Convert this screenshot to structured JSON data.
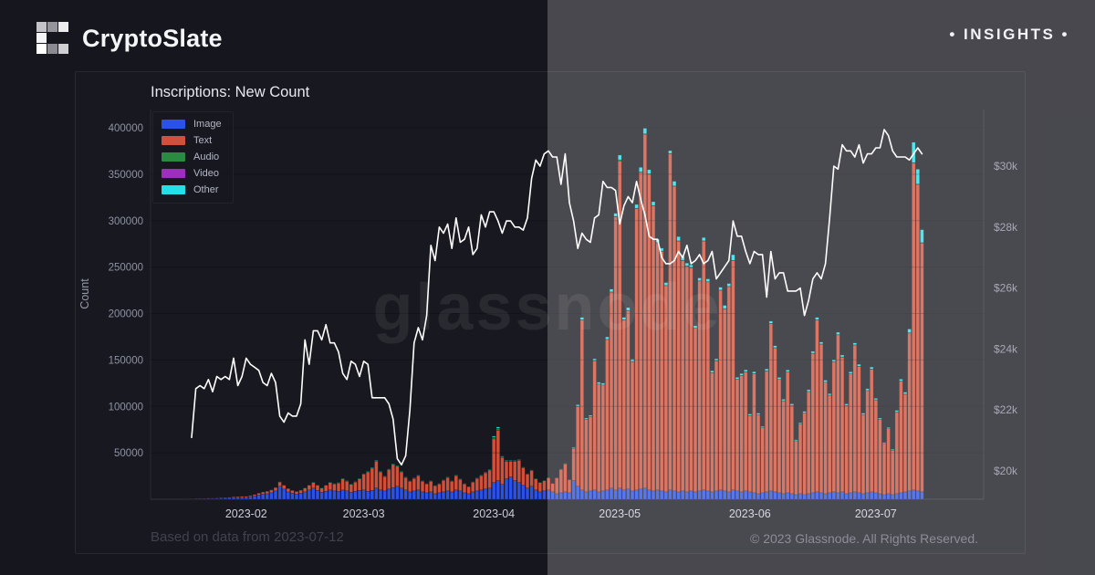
{
  "header": {
    "brand": "CryptoSlate",
    "insights_label": "• INSIGHTS •"
  },
  "chart": {
    "title": "Inscriptions: New Count",
    "ylabel_left": "Count"
  },
  "watermark": "glassnode",
  "footer": {
    "left": "Based on data from 2023-07-12",
    "right": "© 2023 Glassnode. All Rights Reserved."
  },
  "colors": {
    "background": "#16161e",
    "price_line": "#ffffff",
    "image": "#2b52e8",
    "text": "#d1503a",
    "audio": "#2a8a42",
    "video": "#9b30bd",
    "other": "#22dfe8",
    "tick_label": "#8e93a2",
    "month_label": "#ccced8"
  },
  "chart_data": {
    "type": "bar",
    "subtype": "stacked-daily-bars-with-price-line",
    "title": "Inscriptions: New Count",
    "start_date": "2023-01-19",
    "end_date": "2023-07-12",
    "units": "thousands of inscriptions per day",
    "ylabel": "Count",
    "ylim_left": [
      0,
      400000
    ],
    "ylim_right_usd": [
      20000,
      30000
    ],
    "grid": "horizontal",
    "legend_position": "top-left",
    "legend": [
      {
        "label": "Image",
        "color": "#2b52e8"
      },
      {
        "label": "Text",
        "color": "#d1503a"
      },
      {
        "label": "Audio",
        "color": "#2a8a42"
      },
      {
        "label": "Video",
        "color": "#9b30bd"
      },
      {
        "label": "Other",
        "color": "#22dfe8"
      }
    ],
    "left_axis_ticks": [
      400000,
      350000,
      300000,
      250000,
      200000,
      150000,
      100000,
      50000
    ],
    "right_axis_tick_labels": [
      "$30k",
      "$28k",
      "$26k",
      "$24k",
      "$22k",
      "$20k"
    ],
    "right_axis_tick_values_k": [
      30,
      28,
      26,
      24,
      22,
      20
    ],
    "x_tick_labels": [
      "2023-02",
      "2023-03",
      "2023-04",
      "2023-05",
      "2023-06",
      "2023-07"
    ],
    "x_tick_day_index": [
      13,
      41,
      72,
      102,
      133,
      163
    ],
    "series_keys": [
      "Image",
      "Text",
      "Audio",
      "Video",
      "Other"
    ],
    "bars_k": [
      [
        0.4,
        0.3,
        0,
        0,
        0
      ],
      [
        0.5,
        0.4,
        0,
        0,
        0
      ],
      [
        0.6,
        0.4,
        0,
        0,
        0
      ],
      [
        0.5,
        0.5,
        0,
        0,
        0
      ],
      [
        0.6,
        0.6,
        0,
        0,
        0
      ],
      [
        0.7,
        0.5,
        0,
        0,
        0
      ],
      [
        0.8,
        0.6,
        0,
        0,
        0.1
      ],
      [
        0.9,
        0.7,
        0,
        0,
        0.1
      ],
      [
        1,
        0.8,
        0,
        0,
        0.1
      ],
      [
        1.2,
        0.9,
        0,
        0,
        0.1
      ],
      [
        1.4,
        1.2,
        0,
        0,
        0.1
      ],
      [
        1.5,
        1.3,
        0,
        0,
        0.1
      ],
      [
        1.6,
        1.4,
        0,
        0,
        0.1
      ],
      [
        2,
        1.2,
        0,
        0,
        0.1
      ],
      [
        2.5,
        1.4,
        0,
        0,
        0.1
      ],
      [
        3.5,
        1.6,
        0,
        0,
        0.1
      ],
      [
        4.5,
        2,
        0,
        0,
        0.2
      ],
      [
        5.5,
        2.2,
        0,
        0,
        0.2
      ],
      [
        6,
        2.5,
        0,
        0,
        0.2
      ],
      [
        7,
        3,
        0,
        0,
        0.2
      ],
      [
        9,
        3.5,
        0,
        0,
        0.3
      ],
      [
        14,
        4.5,
        0,
        0,
        0.3
      ],
      [
        11,
        4,
        0,
        0,
        0.3
      ],
      [
        8,
        3.5,
        0,
        0,
        0.2
      ],
      [
        6.5,
        3,
        0,
        0,
        0.2
      ],
      [
        5.5,
        2.8,
        0,
        0,
        0.2
      ],
      [
        6.5,
        3.2,
        0,
        0,
        0.2
      ],
      [
        8,
        4,
        0,
        0,
        0.3
      ],
      [
        10,
        5,
        0,
        0,
        0.3
      ],
      [
        12,
        6,
        0.1,
        0,
        0.4
      ],
      [
        9.5,
        5.5,
        0,
        0,
        0.3
      ],
      [
        7.5,
        4.5,
        0,
        0,
        0.3
      ],
      [
        8.5,
        6.5,
        0.1,
        0,
        0.3
      ],
      [
        10,
        8,
        0.1,
        0,
        0.4
      ],
      [
        9,
        7.5,
        0.1,
        0,
        0.4
      ],
      [
        8.5,
        9,
        0.1,
        0,
        0.4
      ],
      [
        10,
        12,
        0.1,
        0,
        0.5
      ],
      [
        9,
        10.5,
        0.1,
        0,
        0.4
      ],
      [
        7.5,
        8.5,
        0.1,
        0,
        0.4
      ],
      [
        8.5,
        10,
        0.1,
        0,
        0.4
      ],
      [
        9.5,
        12.5,
        0.1,
        0,
        0.5
      ],
      [
        10,
        17,
        0.1,
        0,
        0.5
      ],
      [
        8.5,
        21,
        0.1,
        0,
        0.5
      ],
      [
        9.5,
        24,
        0.1,
        0,
        0.6
      ],
      [
        12,
        29,
        0.1,
        0,
        0.7
      ],
      [
        10,
        19.5,
        0.1,
        0,
        0.5
      ],
      [
        9,
        15.5,
        0.1,
        0,
        0.4
      ],
      [
        11,
        21,
        0.1,
        0,
        0.5
      ],
      [
        12.5,
        25,
        0.1,
        0,
        0.6
      ],
      [
        14,
        21.5,
        0.1,
        0,
        0.6
      ],
      [
        12,
        17.5,
        0.1,
        0,
        0.5
      ],
      [
        10,
        13.5,
        0.1,
        0,
        0.4
      ],
      [
        8,
        11.5,
        0.1,
        0,
        0.3
      ],
      [
        9,
        13.5,
        0.1,
        0,
        0.4
      ],
      [
        10,
        15.5,
        0.1,
        0,
        0.4
      ],
      [
        8,
        11.5,
        0.1,
        0,
        0.3
      ],
      [
        7,
        9.5,
        0.1,
        0,
        0.3
      ],
      [
        8,
        11.5,
        0.1,
        0,
        0.3
      ],
      [
        6,
        8.5,
        0.1,
        0,
        0.3
      ],
      [
        7,
        9.5,
        0.1,
        0,
        0.3
      ],
      [
        8,
        12.5,
        0.1,
        0,
        0.3
      ],
      [
        9,
        14.5,
        0.1,
        0,
        0.4
      ],
      [
        8,
        11.5,
        0.1,
        0,
        0.3
      ],
      [
        10,
        15.5,
        0.1,
        0,
        0.4
      ],
      [
        9,
        12.5,
        0.1,
        0,
        0.4
      ],
      [
        7,
        9.5,
        0.1,
        0,
        0.3
      ],
      [
        6,
        7.5,
        0.1,
        0,
        0.2
      ],
      [
        8,
        10.5,
        0.1,
        0,
        0.3
      ],
      [
        9,
        13.5,
        0.1,
        0,
        0.4
      ],
      [
        10,
        15.5,
        0.1,
        0,
        0.4
      ],
      [
        11,
        17.5,
        0.1,
        0,
        0.5
      ],
      [
        12,
        19.5,
        0.1,
        0,
        0.5
      ],
      [
        18,
        47,
        1.5,
        0.3,
        1.2
      ],
      [
        20,
        54,
        2,
        0.3,
        1.5
      ],
      [
        16,
        29,
        0.5,
        0.1,
        0.8
      ],
      [
        22,
        19,
        0.3,
        0.1,
        0.6
      ],
      [
        24,
        17,
        0.3,
        0.1,
        0.6
      ],
      [
        20,
        21,
        0.3,
        0.1,
        0.5
      ],
      [
        18,
        24,
        0.3,
        0.1,
        0.5
      ],
      [
        15,
        19,
        0.2,
        0,
        0.4
      ],
      [
        12,
        15,
        0.2,
        0,
        0.4
      ],
      [
        14,
        17,
        0.2,
        0,
        0.4
      ],
      [
        10,
        12,
        0.2,
        0,
        0.3
      ],
      [
        8,
        10,
        0.1,
        0,
        0.3
      ],
      [
        9,
        11,
        0.1,
        0,
        0.3
      ],
      [
        10,
        13,
        0.2,
        0,
        0.3
      ],
      [
        8,
        9,
        0.1,
        0,
        0.2
      ],
      [
        6,
        17,
        0.1,
        0,
        0.3
      ],
      [
        7,
        25,
        0.1,
        0,
        0.4
      ],
      [
        8,
        30,
        0.1,
        0,
        0.5
      ],
      [
        7,
        14,
        0.1,
        0,
        0.3
      ],
      [
        20,
        35,
        0.2,
        0.1,
        0.8
      ],
      [
        14,
        86,
        0.2,
        0.1,
        1.5
      ],
      [
        10,
        183,
        0.2,
        0.1,
        2.5
      ],
      [
        8,
        78,
        0.2,
        0,
        1.2
      ],
      [
        9,
        80,
        0.2,
        0,
        1.2
      ],
      [
        10,
        139,
        0.2,
        0.1,
        2
      ],
      [
        8,
        116,
        0.2,
        0,
        1.8
      ],
      [
        9,
        114,
        0.2,
        0,
        1.8
      ],
      [
        10,
        162,
        0.2,
        0.1,
        2.5
      ],
      [
        12,
        211,
        0.2,
        0.1,
        3
      ],
      [
        10,
        294,
        0.3,
        0.1,
        3.5
      ],
      [
        12,
        352,
        1.5,
        0.1,
        5
      ],
      [
        10,
        183,
        0.3,
        0.1,
        2.5
      ],
      [
        11,
        192,
        0.3,
        0.1,
        3
      ],
      [
        9,
        139,
        0.2,
        0.1,
        2.5
      ],
      [
        10,
        303,
        0.3,
        0.1,
        4
      ],
      [
        11,
        341,
        0.3,
        0.1,
        5
      ],
      [
        12,
        381,
        0.4,
        0.1,
        6
      ],
      [
        10,
        340,
        0.3,
        0.1,
        4.5
      ],
      [
        9,
        307,
        0.3,
        0.1,
        4
      ],
      [
        10,
        266,
        0.3,
        0.1,
        3.5
      ],
      [
        9,
        258,
        0.3,
        0.1,
        3
      ],
      [
        8,
        222,
        0.2,
        0.1,
        3
      ],
      [
        10,
        362,
        0.3,
        0.1,
        3
      ],
      [
        9,
        328,
        0.3,
        0.1,
        5
      ],
      [
        8,
        270,
        0.2,
        0.1,
        4.5
      ],
      [
        9,
        248,
        0.2,
        0.1,
        4
      ],
      [
        8,
        243,
        0.2,
        0.1,
        3
      ],
      [
        9,
        240,
        0.2,
        0.1,
        3
      ],
      [
        8,
        176,
        0.2,
        0.1,
        2.5
      ],
      [
        9,
        226,
        0.2,
        0.1,
        3
      ],
      [
        10,
        268,
        0.2,
        0.1,
        3.5
      ],
      [
        9,
        225,
        0.2,
        0.1,
        3
      ],
      [
        8,
        128,
        0.2,
        0.1,
        2
      ],
      [
        9,
        140,
        0.2,
        0.1,
        2
      ],
      [
        10,
        215,
        0.2,
        0.1,
        3
      ],
      [
        9,
        196,
        0.2,
        0.1,
        3.5
      ],
      [
        8,
        221,
        0.2,
        0.1,
        3
      ],
      [
        10,
        247,
        0.2,
        0.1,
        6
      ],
      [
        9,
        120,
        0.2,
        0.1,
        2
      ],
      [
        8,
        125,
        0.2,
        0.1,
        2
      ],
      [
        9,
        128,
        0.2,
        0.1,
        2
      ],
      [
        8,
        82,
        0.2,
        0.1,
        1.5
      ],
      [
        7,
        128,
        0.2,
        0.1,
        2
      ],
      [
        6,
        85,
        0.2,
        0,
        1.5
      ],
      [
        7,
        70,
        0.2,
        0,
        1.2
      ],
      [
        8,
        130,
        0.2,
        0.1,
        2
      ],
      [
        9,
        180,
        0.2,
        0.1,
        2.5
      ],
      [
        8,
        155,
        0.2,
        0.1,
        2
      ],
      [
        7,
        122,
        0.2,
        0,
        2
      ],
      [
        6,
        100,
        0.2,
        0,
        1.5
      ],
      [
        7,
        130,
        0.2,
        0,
        2
      ],
      [
        6,
        95,
        0.2,
        0,
        1.5
      ],
      [
        5,
        58,
        0.1,
        0,
        1
      ],
      [
        6,
        75,
        0.1,
        0,
        1.2
      ],
      [
        5,
        88,
        0.1,
        0,
        1.5
      ],
      [
        6,
        110,
        0.2,
        0,
        1.8
      ],
      [
        7,
        150,
        0.2,
        0.1,
        2
      ],
      [
        8,
        185,
        0.2,
        0.1,
        2.5
      ],
      [
        7,
        160,
        0.2,
        0.1,
        2
      ],
      [
        6,
        120,
        0.2,
        0,
        2
      ],
      [
        7,
        105,
        0.2,
        0,
        1.5
      ],
      [
        8,
        140,
        0.2,
        0.1,
        2
      ],
      [
        7,
        170,
        0.2,
        0.1,
        2.5
      ],
      [
        8,
        145,
        0.2,
        0.1,
        2
      ],
      [
        6,
        95,
        0.2,
        0,
        1.5
      ],
      [
        7,
        128,
        0.2,
        0,
        2
      ],
      [
        8,
        158,
        0.2,
        0.1,
        2
      ],
      [
        7,
        136,
        0.2,
        0.1,
        2
      ],
      [
        6,
        85,
        0.2,
        0,
        1.5
      ],
      [
        7,
        110,
        0.2,
        0,
        1.8
      ],
      [
        8,
        132,
        0.2,
        0.1,
        2
      ],
      [
        7,
        100,
        0.2,
        0,
        1.5
      ],
      [
        6,
        80,
        0.2,
        0,
        1.2
      ],
      [
        5,
        55,
        0.1,
        0,
        1
      ],
      [
        6,
        70,
        0.1,
        0,
        1.2
      ],
      [
        5,
        48,
        0.1,
        0,
        0.8
      ],
      [
        6,
        88,
        0.2,
        0,
        1.5
      ],
      [
        7,
        120,
        0.2,
        0.1,
        2
      ],
      [
        8,
        105,
        0.2,
        0.1,
        2
      ],
      [
        9,
        170,
        0.2,
        0.1,
        4
      ],
      [
        10,
        352,
        0.3,
        0.1,
        22
      ],
      [
        9,
        330,
        0.3,
        0.1,
        16
      ],
      [
        8,
        268,
        0.2,
        0.1,
        14
      ]
    ],
    "btc_price_usd_k": [
      21.1,
      22.7,
      22.8,
      22.7,
      23.0,
      22.6,
      23.1,
      23.0,
      23.1,
      23.0,
      23.7,
      22.8,
      23.1,
      23.7,
      23.5,
      23.4,
      23.3,
      22.9,
      22.8,
      23.2,
      22.9,
      21.8,
      21.6,
      21.9,
      21.8,
      21.8,
      22.2,
      24.3,
      23.5,
      24.6,
      24.6,
      24.3,
      24.8,
      24.2,
      24.2,
      23.9,
      23.2,
      23.0,
      23.6,
      23.5,
      23.1,
      23.6,
      23.5,
      22.4,
      22.4,
      22.4,
      22.4,
      22.2,
      21.7,
      20.4,
      20.2,
      20.5,
      22.0,
      24.2,
      24.7,
      24.3,
      25.1,
      27.4,
      26.9,
      28.0,
      27.8,
      28.1,
      27.3,
      28.3,
      27.5,
      27.6,
      28.0,
      27.1,
      27.3,
      28.4,
      28.0,
      28.5,
      28.5,
      28.2,
      27.8,
      28.2,
      28.2,
      28.0,
      28.0,
      27.9,
      28.3,
      29.6,
      30.2,
      30.0,
      30.4,
      30.5,
      30.3,
      30.3,
      29.4,
      30.4,
      28.8,
      28.2,
      27.3,
      27.8,
      27.6,
      27.5,
      28.3,
      28.4,
      29.5,
      29.3,
      29.3,
      29.2,
      28.1,
      28.7,
      29.0,
      28.8,
      29.5,
      28.9,
      28.4,
      27.7,
      27.6,
      27.6,
      27.0,
      26.8,
      26.8,
      26.9,
      27.2,
      27.0,
      27.4,
      26.8,
      26.9,
      27.1,
      26.8,
      26.9,
      27.2,
      26.3,
      26.5,
      26.7,
      26.9,
      28.2,
      27.7,
      27.7,
      27.2,
      26.8,
      27.2,
      27.1,
      27.1,
      25.7,
      27.2,
      26.3,
      26.5,
      26.5,
      25.9,
      25.9,
      25.9,
      26.0,
      25.1,
      25.6,
      26.3,
      26.5,
      26.3,
      26.8,
      28.3,
      30.0,
      29.9,
      30.7,
      30.5,
      30.5,
      30.3,
      30.7,
      30.1,
      30.4,
      30.4,
      30.6,
      30.6,
      31.2,
      31.0,
      30.5,
      30.3,
      30.3,
      30.3,
      30.2,
      30.4,
      30.6,
      30.4
    ]
  }
}
